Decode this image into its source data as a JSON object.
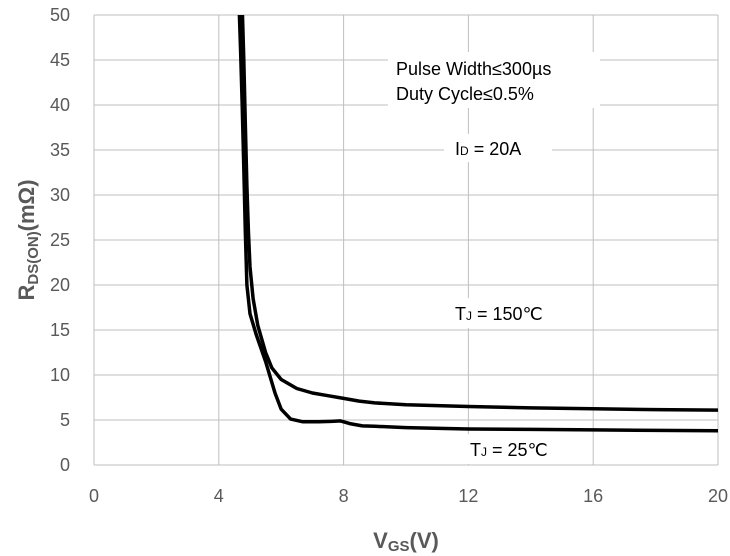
{
  "chart_data": {
    "type": "line",
    "title": "",
    "xlabel": {
      "main": "V",
      "sub": "GS",
      "suffix": "(V)"
    },
    "ylabel": {
      "main": "R",
      "sub": "DS(ON)",
      "suffix": "(mΩ)"
    },
    "xlim": [
      0,
      20
    ],
    "ylim": [
      0,
      50
    ],
    "xticks": [
      0,
      4,
      8,
      12,
      16,
      20
    ],
    "yticks": [
      0,
      5,
      10,
      15,
      20,
      25,
      30,
      35,
      40,
      45,
      50
    ],
    "grid": true,
    "series": [
      {
        "name": "TJ = 150°C",
        "x": [
          4.75,
          4.8,
          4.85,
          4.9,
          4.95,
          5.0,
          5.1,
          5.25,
          5.5,
          5.7,
          6.0,
          6.5,
          7.0,
          7.5,
          8.0,
          8.5,
          9,
          10,
          12,
          14,
          16,
          18,
          20
        ],
        "y": [
          51,
          45,
          38,
          31,
          26,
          22,
          18.5,
          15.5,
          12.5,
          10.8,
          9.5,
          8.5,
          8.0,
          7.7,
          7.4,
          7.1,
          6.9,
          6.7,
          6.5,
          6.35,
          6.25,
          6.15,
          6.1
        ]
      },
      {
        "name": "TJ = 25°C",
        "x": [
          4.65,
          4.7,
          4.75,
          4.8,
          4.85,
          4.9,
          5.0,
          5.2,
          5.5,
          5.8,
          6.0,
          6.3,
          6.7,
          7.2,
          7.6,
          7.9,
          8.2,
          8.6,
          9,
          10,
          12,
          14,
          16,
          18,
          20
        ],
        "y": [
          51,
          46,
          40,
          33,
          26,
          20,
          16.8,
          14.5,
          11.5,
          8.0,
          6.2,
          5.1,
          4.8,
          4.8,
          4.85,
          4.9,
          4.6,
          4.35,
          4.3,
          4.15,
          4.0,
          3.95,
          3.9,
          3.85,
          3.8
        ]
      }
    ],
    "annotations": [
      {
        "id": "pulse",
        "text": "Pulse Width≤300µs"
      },
      {
        "id": "duty",
        "text": "Duty Cycle≤0.5%"
      },
      {
        "id": "id",
        "text": "= 20A",
        "prefix": "I",
        "sub": "D"
      },
      {
        "id": "tj150",
        "text": "= 150℃",
        "prefix": "T",
        "sub": "J"
      },
      {
        "id": "tj25",
        "text": "= 25℃",
        "prefix": "T",
        "sub": "J"
      }
    ]
  }
}
